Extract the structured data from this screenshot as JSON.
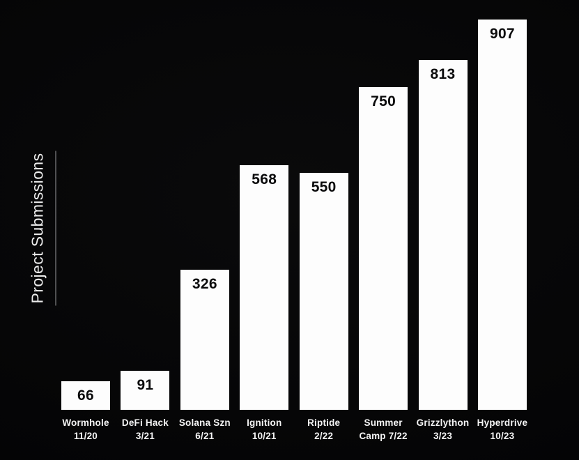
{
  "background_color": "#050506",
  "y_axis": {
    "label": "Project Submissions",
    "text_color": "#ececec",
    "underline_color": "#98999b"
  },
  "chart_data": {
    "type": "bar",
    "title": "",
    "xlabel": "",
    "ylabel": "Project Submissions",
    "categories": [
      "Wormhole 11/20",
      "DeFi Hack 3/21",
      "Solana Szn 6/21",
      "Ignition 10/21",
      "Riptide 2/22",
      "Summer Camp 7/22",
      "Grizzlython 3/23",
      "Hyperdrive 10/23"
    ],
    "category_lines": [
      [
        "Wormhole",
        "11/20"
      ],
      [
        "DeFi Hack",
        "3/21"
      ],
      [
        "Solana Szn",
        "6/21"
      ],
      [
        "Ignition",
        "10/21"
      ],
      [
        "Riptide",
        "2/22"
      ],
      [
        "Summer",
        "Camp 7/22"
      ],
      [
        "Grizzlython",
        "3/23"
      ],
      [
        "Hyperdrive",
        "10/23"
      ]
    ],
    "values": [
      66,
      91,
      326,
      568,
      550,
      750,
      813,
      907
    ],
    "value_labels": [
      "66",
      "91",
      "326",
      "568",
      "550",
      "750",
      "813",
      "907"
    ],
    "ylim": [
      0,
      907
    ],
    "grid": false,
    "legend": false,
    "bar_color": "#fdfdfd",
    "value_label_color": "#0b0b0c",
    "tick_label_color": "#f4f4f4"
  }
}
